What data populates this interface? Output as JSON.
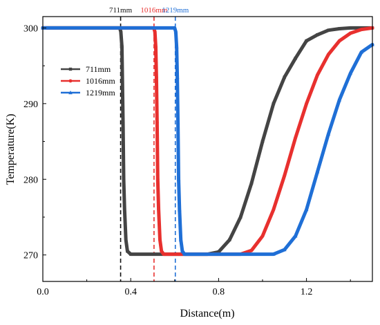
{
  "chart_data": {
    "type": "line",
    "title": "",
    "xlabel": "Distance(m)",
    "ylabel": "Temperature(K)",
    "xlim": [
      0.0,
      1.5
    ],
    "ylim": [
      266.5,
      301.5
    ],
    "xticks": [
      0.0,
      0.4,
      0.8,
      1.2
    ],
    "xtick_labels": [
      "0.0",
      "0.4",
      "0.8",
      "1.2"
    ],
    "yticks": [
      270,
      280,
      290,
      300
    ],
    "ytick_labels": [
      "270",
      "280",
      "290",
      "300"
    ],
    "grid": false,
    "legend_position": "upper-left",
    "series": [
      {
        "name": "711mm",
        "color": "#444444",
        "marker": "square",
        "x": [
          0.0,
          0.35,
          0.355,
          0.36,
          0.362,
          0.365,
          0.368,
          0.372,
          0.378,
          0.385,
          0.4,
          0.6,
          0.75,
          0.8,
          0.85,
          0.9,
          0.95,
          1.0,
          1.05,
          1.1,
          1.15,
          1.2,
          1.25,
          1.3,
          1.35,
          1.4,
          1.45,
          1.5
        ],
        "y": [
          300,
          300,
          299.5,
          297.5,
          293.5,
          287.5,
          280,
          276,
          272,
          270.5,
          270.1,
          270.1,
          270.1,
          270.4,
          272,
          275,
          279.5,
          285,
          290,
          293.5,
          296,
          298.3,
          299.1,
          299.7,
          299.9,
          300,
          300,
          300
        ]
      },
      {
        "name": "1016mm",
        "color": "#e8302e",
        "marker": "circle",
        "x": [
          0.0,
          0.505,
          0.51,
          0.514,
          0.517,
          0.52,
          0.523,
          0.527,
          0.533,
          0.54,
          0.55,
          0.7,
          0.9,
          0.95,
          1.0,
          1.05,
          1.1,
          1.15,
          1.2,
          1.25,
          1.3,
          1.35,
          1.4,
          1.45,
          1.5
        ],
        "y": [
          300,
          300,
          299.5,
          297.5,
          293.5,
          287.5,
          280,
          276,
          272,
          270.5,
          270.1,
          270.1,
          270.1,
          270.6,
          272.5,
          276,
          280.5,
          285.5,
          290,
          293.8,
          296.5,
          298.3,
          299.3,
          299.8,
          300
        ]
      },
      {
        "name": "1219mm",
        "color": "#1f6fd6",
        "marker": "triangle",
        "x": [
          0.0,
          0.6,
          0.605,
          0.609,
          0.612,
          0.615,
          0.618,
          0.622,
          0.628,
          0.635,
          0.645,
          0.8,
          1.05,
          1.1,
          1.15,
          1.2,
          1.25,
          1.3,
          1.35,
          1.4,
          1.45,
          1.5
        ],
        "y": [
          300,
          300,
          299.5,
          297.5,
          293.5,
          287.5,
          280,
          276,
          272,
          270.5,
          270.1,
          270.1,
          270.1,
          270.7,
          272.5,
          276,
          281,
          286,
          290.5,
          294,
          296.8,
          297.8
        ]
      }
    ],
    "annotations": [
      {
        "text": "711mm",
        "x": 0.354,
        "color": "#111111"
      },
      {
        "text": "1016mm",
        "x": 0.506,
        "color": "#e8302e"
      },
      {
        "text": "1219mm",
        "x": 0.603,
        "color": "#1f6fd6"
      }
    ]
  }
}
